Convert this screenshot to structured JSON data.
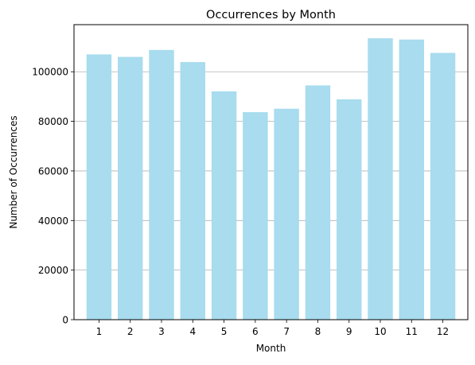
{
  "chart_data": {
    "type": "bar",
    "title": "Occurrences by Month",
    "xlabel": "Month",
    "ylabel": "Number of Occurrences",
    "bar_color": "#a8dcee",
    "grid_color": "#b0b0b0",
    "grid": "y-major",
    "legend": "none",
    "x_tick_labels": [
      "1",
      "2",
      "3",
      "4",
      "5",
      "6",
      "7",
      "8",
      "9",
      "10",
      "11",
      "12"
    ],
    "y_ticks": [
      0,
      20000,
      40000,
      60000,
      80000,
      100000
    ],
    "y_tick_labels": [
      "0",
      "20000",
      "40000",
      "60000",
      "80000",
      "100000"
    ],
    "ylim": [
      0,
      119000
    ],
    "bars": [
      {
        "label": "1",
        "value": 107000
      },
      {
        "label": "2",
        "value": 106000
      },
      {
        "label": "3",
        "value": 108800
      },
      {
        "label": "4",
        "value": 103900
      },
      {
        "label": "5",
        "value": 92100
      },
      {
        "label": "6",
        "value": 83700
      },
      {
        "label": "7",
        "value": 85100
      },
      {
        "label": "8",
        "value": 94500
      },
      {
        "label": "9",
        "value": 88900
      },
      {
        "label": "10",
        "value": 113500
      },
      {
        "label": "11",
        "value": 113000
      },
      {
        "label": "12",
        "value": 107600
      }
    ]
  }
}
